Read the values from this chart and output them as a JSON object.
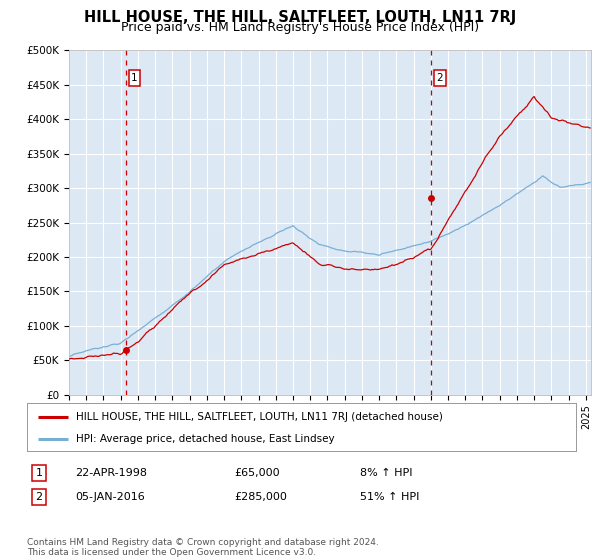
{
  "title": "HILL HOUSE, THE HILL, SALTFLEET, LOUTH, LN11 7RJ",
  "subtitle": "Price paid vs. HM Land Registry's House Price Index (HPI)",
  "title_fontsize": 10.5,
  "subtitle_fontsize": 9,
  "ylabel_ticks": [
    "£0",
    "£50K",
    "£100K",
    "£150K",
    "£200K",
    "£250K",
    "£300K",
    "£350K",
    "£400K",
    "£450K",
    "£500K"
  ],
  "ytick_values": [
    0,
    50000,
    100000,
    150000,
    200000,
    250000,
    300000,
    350000,
    400000,
    450000,
    500000
  ],
  "ylim": [
    0,
    500000
  ],
  "xlim_start": 1995.0,
  "xlim_end": 2025.3,
  "background_color": "#ffffff",
  "plot_bg_color": "#dce9f5",
  "grid_color": "#ffffff",
  "red_line_color": "#cc0000",
  "blue_line_color": "#7aafd4",
  "marker1_date": 1998.31,
  "marker1_value": 65000,
  "marker2_date": 2016.02,
  "marker2_value": 285000,
  "legend_label_red": "HILL HOUSE, THE HILL, SALTFLEET, LOUTH, LN11 7RJ (detached house)",
  "legend_label_blue": "HPI: Average price, detached house, East Lindsey",
  "table_row1": [
    "1",
    "22-APR-1998",
    "£65,000",
    "8% ↑ HPI"
  ],
  "table_row2": [
    "2",
    "05-JAN-2016",
    "£285,000",
    "51% ↑ HPI"
  ],
  "footer": "Contains HM Land Registry data © Crown copyright and database right 2024.\nThis data is licensed under the Open Government Licence v3.0.",
  "dashed_vline1_x": 1998.31,
  "dashed_vline2_x": 2016.02
}
